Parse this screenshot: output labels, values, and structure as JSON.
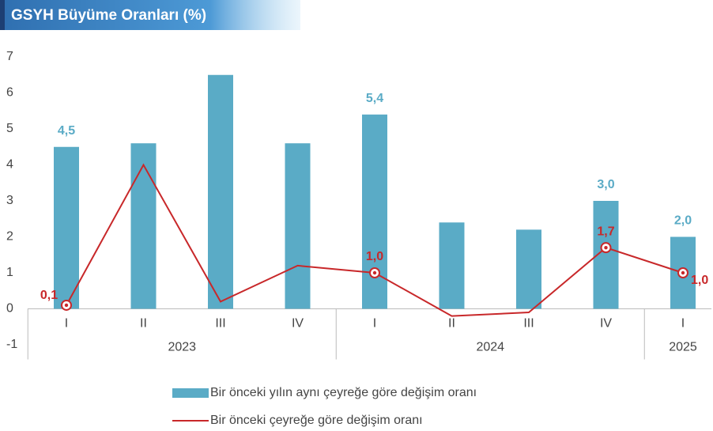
{
  "chart_data": {
    "type": "bar_line",
    "title": "GSYH Büyüme Oranları (%)",
    "category_groups": [
      {
        "label": "2023",
        "categories": [
          "I",
          "II",
          "III",
          "IV"
        ]
      },
      {
        "label": "2024",
        "categories": [
          "I",
          "II",
          "III",
          "IV"
        ]
      },
      {
        "label": "2025",
        "categories": [
          "I"
        ]
      }
    ],
    "series": [
      {
        "name": "Bir önceki yılın aynı çeyreğe göre değişim oranı",
        "type": "bar",
        "color": "#5aabc6",
        "values": [
          4.5,
          4.6,
          6.5,
          4.6,
          5.4,
          2.4,
          2.2,
          3.0,
          2.0
        ],
        "value_labels": [
          "4,5",
          null,
          null,
          null,
          "5,4",
          null,
          null,
          "3,0",
          "2,0"
        ]
      },
      {
        "name": "Bir önceki çeyreğe göre değişim oranı",
        "type": "line",
        "color": "#c8282a",
        "values": [
          0.1,
          4.0,
          0.2,
          1.2,
          1.0,
          -0.2,
          -0.1,
          1.7,
          1.0
        ],
        "value_labels": [
          "0,1",
          null,
          null,
          null,
          "1,0",
          null,
          null,
          "1,7",
          "1,0"
        ]
      }
    ],
    "ylim": [
      -1,
      7
    ],
    "yticks": [
      -1,
      0,
      1,
      2,
      3,
      4,
      5,
      6,
      7
    ],
    "grid": false
  }
}
